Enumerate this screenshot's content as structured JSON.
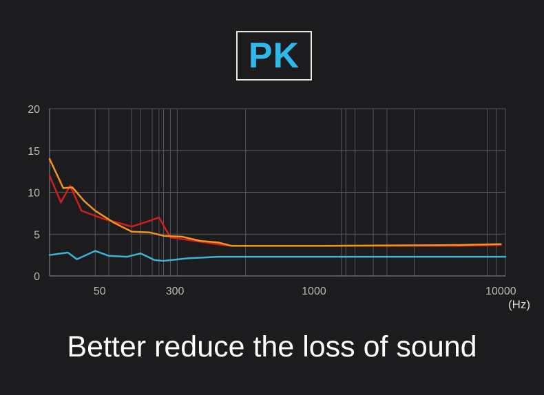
{
  "badge": {
    "label": "PK"
  },
  "caption": "Better reduce the loss of sound",
  "chart_data": {
    "type": "line",
    "title": "PK",
    "xlabel": "",
    "x_unit": "(Hz)",
    "ylabel": "",
    "ylim": [
      0,
      20
    ],
    "y_ticks": [
      0,
      5,
      10,
      15,
      20
    ],
    "x_ticks": [
      {
        "label": "50",
        "pos": 0.11
      },
      {
        "label": "300",
        "pos": 0.275
      },
      {
        "label": "1000",
        "pos": 0.58
      },
      {
        "label": "10000",
        "pos": 0.99
      }
    ],
    "vgrid_pos": [
      0.0,
      0.1,
      0.13,
      0.18,
      0.2,
      0.225,
      0.24,
      0.25,
      0.265,
      0.28,
      0.43,
      0.64,
      0.65,
      0.67,
      0.71,
      0.71,
      0.74,
      0.8,
      0.96,
      0.98,
      1.0
    ],
    "series": [
      {
        "name": "red",
        "color": "#d01e1e",
        "points": [
          [
            0.0,
            12
          ],
          [
            0.025,
            8.8
          ],
          [
            0.045,
            10.8
          ],
          [
            0.07,
            7.8
          ],
          [
            0.12,
            6.8
          ],
          [
            0.155,
            6.3
          ],
          [
            0.18,
            5.9
          ],
          [
            0.22,
            6.6
          ],
          [
            0.24,
            7
          ],
          [
            0.265,
            4.6
          ],
          [
            0.33,
            4.1
          ],
          [
            0.38,
            3.7
          ],
          [
            0.4,
            3.6
          ],
          [
            0.6,
            3.6
          ],
          [
            0.9,
            3.6
          ],
          [
            0.99,
            3.7
          ]
        ]
      },
      {
        "name": "orange",
        "color": "#f0951f",
        "points": [
          [
            0.0,
            14
          ],
          [
            0.03,
            10.5
          ],
          [
            0.05,
            10.6
          ],
          [
            0.075,
            9
          ],
          [
            0.1,
            7.8
          ],
          [
            0.14,
            6.4
          ],
          [
            0.18,
            5.3
          ],
          [
            0.22,
            5.2
          ],
          [
            0.25,
            4.8
          ],
          [
            0.29,
            4.7
          ],
          [
            0.33,
            4.2
          ],
          [
            0.37,
            4.0
          ],
          [
            0.4,
            3.6
          ],
          [
            0.6,
            3.6
          ],
          [
            0.9,
            3.7
          ],
          [
            0.99,
            3.8
          ]
        ]
      },
      {
        "name": "blue",
        "color": "#3cb3d6",
        "points": [
          [
            0.0,
            2.5
          ],
          [
            0.04,
            2.8
          ],
          [
            0.06,
            2.0
          ],
          [
            0.1,
            3.0
          ],
          [
            0.13,
            2.4
          ],
          [
            0.17,
            2.3
          ],
          [
            0.2,
            2.7
          ],
          [
            0.23,
            1.9
          ],
          [
            0.25,
            1.8
          ],
          [
            0.3,
            2.1
          ],
          [
            0.37,
            2.3
          ],
          [
            0.45,
            2.3
          ],
          [
            0.6,
            2.3
          ],
          [
            0.8,
            2.3
          ],
          [
            1.0,
            2.3
          ]
        ]
      }
    ]
  }
}
